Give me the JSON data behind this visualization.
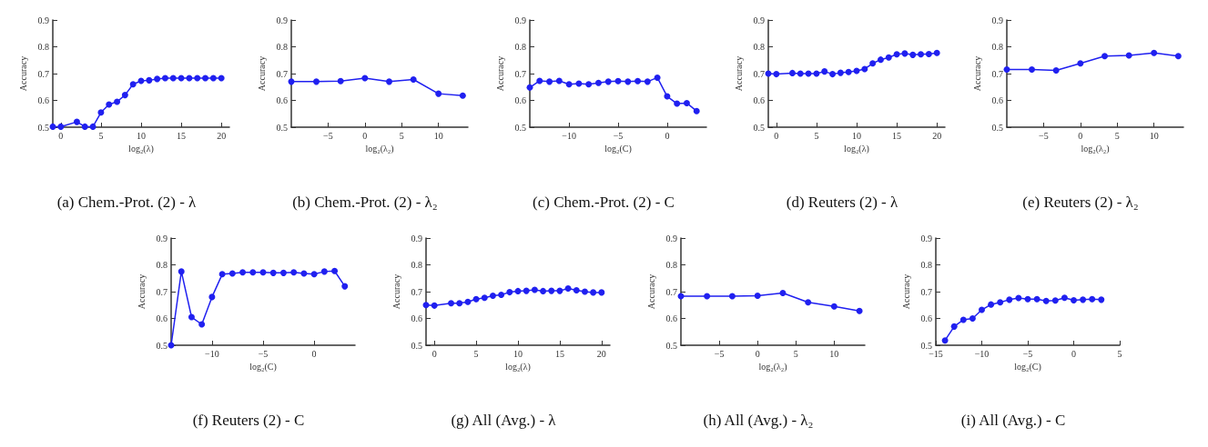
{
  "chart_data": [
    {
      "type": "line",
      "title": "(a) Chem.-Prot. (2) - λ",
      "xlabel": "log₂(λ)",
      "ylabel": "Accuracy",
      "xlim": [
        -1,
        21
      ],
      "xticks": [
        0,
        5,
        10,
        15,
        20
      ],
      "ylim": [
        0.5,
        0.9
      ],
      "yticks": [
        0.5,
        0.6,
        0.7,
        0.8,
        0.9
      ],
      "grid": false,
      "marker": "circle",
      "line_style": "solid",
      "series": [
        {
          "color": "#2020f0",
          "x": [
            -1,
            0,
            2,
            3,
            4,
            5,
            6,
            7,
            8,
            9,
            10,
            11,
            12,
            13,
            14,
            15,
            16,
            17,
            18,
            19,
            20
          ],
          "values": [
            0.502,
            0.502,
            0.52,
            0.502,
            0.502,
            0.555,
            0.585,
            0.595,
            0.62,
            0.66,
            0.673,
            0.675,
            0.68,
            0.683,
            0.683,
            0.683,
            0.683,
            0.683,
            0.683,
            0.683,
            0.683
          ]
        }
      ]
    },
    {
      "type": "line",
      "title": "(b) Chem.-Prot. (2) - λ₂",
      "xlabel": "log₂(λ₂)",
      "ylabel": "Accuracy",
      "xlim": [
        -10,
        14
      ],
      "xticks": [
        -5,
        0,
        5,
        10
      ],
      "ylim": [
        0.5,
        0.9
      ],
      "yticks": [
        0.5,
        0.6,
        0.7,
        0.8,
        0.9
      ],
      "grid": false,
      "marker": "circle",
      "line_style": "solid",
      "series": [
        {
          "color": "#2020f0",
          "x": [
            -10,
            -6.6,
            -3.3,
            0,
            3.3,
            6.6,
            10,
            13.3
          ],
          "values": [
            0.67,
            0.67,
            0.672,
            0.683,
            0.67,
            0.678,
            0.625,
            0.618
          ]
        }
      ]
    },
    {
      "type": "line",
      "title": "(c) Chem.-Prot. (2) - C",
      "xlabel": "log₂(C)",
      "ylabel": "Accuracy",
      "xlim": [
        -14,
        4
      ],
      "xticks": [
        -10,
        -5,
        0
      ],
      "ylim": [
        0.5,
        0.9
      ],
      "yticks": [
        0.5,
        0.6,
        0.7,
        0.8,
        0.9
      ],
      "grid": false,
      "marker": "circle",
      "line_style": "solid",
      "series": [
        {
          "color": "#2020f0",
          "x": [
            -14,
            -13,
            -12,
            -11,
            -10,
            -9,
            -8,
            -7,
            -6,
            -5,
            -4,
            -3,
            -2,
            -1,
            0,
            1,
            2,
            3
          ],
          "values": [
            0.648,
            0.673,
            0.67,
            0.673,
            0.66,
            0.663,
            0.66,
            0.665,
            0.67,
            0.672,
            0.67,
            0.672,
            0.67,
            0.685,
            0.615,
            0.588,
            0.59,
            0.56
          ]
        }
      ]
    },
    {
      "type": "line",
      "title": "(d) Reuters (2) - λ",
      "xlabel": "log₂(λ)",
      "ylabel": "Accuracy",
      "xlim": [
        -1,
        21
      ],
      "xticks": [
        0,
        5,
        10,
        15,
        20
      ],
      "ylim": [
        0.5,
        0.9
      ],
      "yticks": [
        0.5,
        0.6,
        0.7,
        0.8,
        0.9
      ],
      "grid": false,
      "marker": "circle",
      "line_style": "solid",
      "series": [
        {
          "color": "#2020f0",
          "x": [
            -1,
            0,
            2,
            3,
            4,
            5,
            6,
            7,
            8,
            9,
            10,
            11,
            12,
            13,
            14,
            15,
            16,
            17,
            18,
            19,
            20
          ],
          "values": [
            0.7,
            0.698,
            0.702,
            0.7,
            0.7,
            0.7,
            0.708,
            0.698,
            0.703,
            0.706,
            0.71,
            0.717,
            0.738,
            0.752,
            0.76,
            0.772,
            0.775,
            0.77,
            0.772,
            0.773,
            0.777
          ]
        }
      ]
    },
    {
      "type": "line",
      "title": "(e) Reuters (2) - λ₂",
      "xlabel": "log₂(λ₂)",
      "ylabel": "Accuracy",
      "xlim": [
        -10,
        14
      ],
      "xticks": [
        -5,
        0,
        5,
        10
      ],
      "ylim": [
        0.5,
        0.9
      ],
      "yticks": [
        0.5,
        0.6,
        0.7,
        0.8,
        0.9
      ],
      "grid": false,
      "marker": "circle",
      "line_style": "solid",
      "series": [
        {
          "color": "#2020f0",
          "x": [
            -10,
            -6.6,
            -3.3,
            0,
            3.3,
            6.6,
            10,
            13.3
          ],
          "values": [
            0.715,
            0.715,
            0.712,
            0.738,
            0.765,
            0.768,
            0.777,
            0.765
          ]
        }
      ]
    },
    {
      "type": "line",
      "title": "(f) Reuters (2) - C",
      "xlabel": "log₂(C)",
      "ylabel": "Accuracy",
      "xlim": [
        -14,
        4
      ],
      "xticks": [
        -10,
        -5,
        0
      ],
      "ylim": [
        0.5,
        0.9
      ],
      "yticks": [
        0.5,
        0.6,
        0.7,
        0.8,
        0.9
      ],
      "grid": false,
      "marker": "circle",
      "line_style": "solid",
      "series": [
        {
          "color": "#2020f0",
          "x": [
            -14,
            -13,
            -12,
            -11,
            -10,
            -9,
            -8,
            -7,
            -6,
            -5,
            -4,
            -3,
            -2,
            -1,
            0,
            1,
            2,
            3
          ],
          "values": [
            0.5,
            0.775,
            0.605,
            0.578,
            0.68,
            0.765,
            0.768,
            0.772,
            0.772,
            0.772,
            0.77,
            0.77,
            0.772,
            0.768,
            0.765,
            0.775,
            0.777,
            0.72
          ]
        }
      ]
    },
    {
      "type": "line",
      "title": "(g) All (Avg.) - λ",
      "xlabel": "log₂(λ)",
      "ylabel": "Accuracy",
      "xlim": [
        -1,
        21
      ],
      "xticks": [
        0,
        5,
        10,
        15,
        20
      ],
      "ylim": [
        0.5,
        0.9
      ],
      "yticks": [
        0.5,
        0.6,
        0.7,
        0.8,
        0.9
      ],
      "grid": false,
      "marker": "circle",
      "line_style": "solid",
      "series": [
        {
          "color": "#2020f0",
          "x": [
            -1,
            0,
            2,
            3,
            4,
            5,
            6,
            7,
            8,
            9,
            10,
            11,
            12,
            13,
            14,
            15,
            16,
            17,
            18,
            19,
            20
          ],
          "values": [
            0.65,
            0.648,
            0.657,
            0.657,
            0.662,
            0.672,
            0.677,
            0.685,
            0.688,
            0.698,
            0.702,
            0.703,
            0.707,
            0.702,
            0.703,
            0.703,
            0.712,
            0.705,
            0.7,
            0.697,
            0.697
          ]
        }
      ]
    },
    {
      "type": "line",
      "title": "(h) All (Avg.) - λ₂",
      "xlabel": "log₂(λ₂)",
      "ylabel": "Accuracy",
      "xlim": [
        -10,
        14
      ],
      "xticks": [
        -5,
        0,
        5,
        10
      ],
      "ylim": [
        0.5,
        0.9
      ],
      "yticks": [
        0.5,
        0.6,
        0.7,
        0.8,
        0.9
      ],
      "grid": false,
      "marker": "circle",
      "line_style": "solid",
      "series": [
        {
          "color": "#2020f0",
          "x": [
            -10,
            -6.6,
            -3.3,
            0,
            3.3,
            6.6,
            10,
            13.3
          ],
          "values": [
            0.683,
            0.683,
            0.683,
            0.685,
            0.695,
            0.66,
            0.645,
            0.628
          ]
        }
      ]
    },
    {
      "type": "line",
      "title": "(i) All (Avg.) - C",
      "xlabel": "log₂(C)",
      "ylabel": "Accuracy",
      "xlim": [
        -15,
        5
      ],
      "xticks": [
        -15,
        -10,
        -5,
        0,
        5
      ],
      "ylim": [
        0.5,
        0.9
      ],
      "yticks": [
        0.5,
        0.6,
        0.7,
        0.8,
        0.9
      ],
      "grid": false,
      "marker": "circle",
      "line_style": "solid",
      "series": [
        {
          "color": "#2020f0",
          "x": [
            -14,
            -13,
            -12,
            -11,
            -10,
            -9,
            -8,
            -7,
            -6,
            -5,
            -4,
            -3,
            -2,
            -1,
            0,
            1,
            2,
            3
          ],
          "values": [
            0.518,
            0.57,
            0.595,
            0.6,
            0.632,
            0.652,
            0.66,
            0.67,
            0.676,
            0.672,
            0.672,
            0.665,
            0.667,
            0.677,
            0.668,
            0.67,
            0.672,
            0.67
          ]
        }
      ]
    }
  ]
}
